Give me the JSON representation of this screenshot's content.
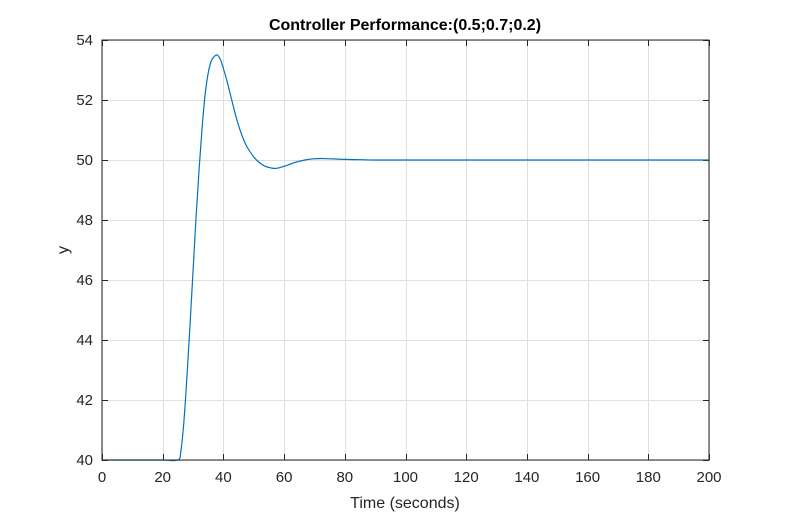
{
  "chart_data": {
    "type": "line",
    "title": "Controller Performance:(0.5;0.7;0.2)",
    "xlabel": "Time (seconds)",
    "ylabel": "y",
    "xlim": [
      0,
      200
    ],
    "ylim": [
      40,
      54
    ],
    "xticks": [
      0,
      20,
      40,
      60,
      80,
      100,
      120,
      140,
      160,
      180,
      200
    ],
    "yticks": [
      40,
      42,
      44,
      46,
      48,
      50,
      52,
      54
    ],
    "xtick_labels": [
      "0",
      "20",
      "40",
      "60",
      "80",
      "100",
      "120",
      "140",
      "160",
      "180",
      "200"
    ],
    "ytick_labels": [
      "40",
      "42",
      "44",
      "46",
      "48",
      "50",
      "52",
      "54"
    ],
    "grid": true,
    "series": [
      {
        "color": "#0072bd",
        "x": [
          0,
          5,
          10,
          15,
          20,
          25,
          26,
          27,
          28,
          29,
          30,
          31,
          32,
          33,
          34,
          35,
          36,
          37,
          38,
          39,
          40,
          41,
          42,
          43,
          44,
          45,
          46,
          47,
          48,
          50,
          52,
          54,
          56,
          57,
          58,
          60,
          62,
          64,
          66,
          68,
          70,
          72,
          75,
          78,
          80,
          85,
          90,
          95,
          100,
          110,
          120,
          140,
          160,
          180,
          200
        ],
        "y": [
          40,
          40,
          40,
          40,
          40,
          40,
          40.3,
          41.3,
          42.8,
          44.5,
          46.3,
          48.1,
          49.7,
          51.1,
          52.2,
          52.9,
          53.3,
          53.45,
          53.5,
          53.35,
          53.05,
          52.7,
          52.3,
          51.9,
          51.5,
          51.15,
          50.85,
          50.6,
          50.4,
          50.1,
          49.9,
          49.78,
          49.73,
          49.72,
          49.73,
          49.79,
          49.86,
          49.93,
          49.98,
          50.02,
          50.04,
          50.05,
          50.04,
          50.03,
          50.02,
          50.01,
          50,
          50,
          50,
          50,
          50,
          50,
          50,
          50,
          50
        ]
      }
    ]
  }
}
